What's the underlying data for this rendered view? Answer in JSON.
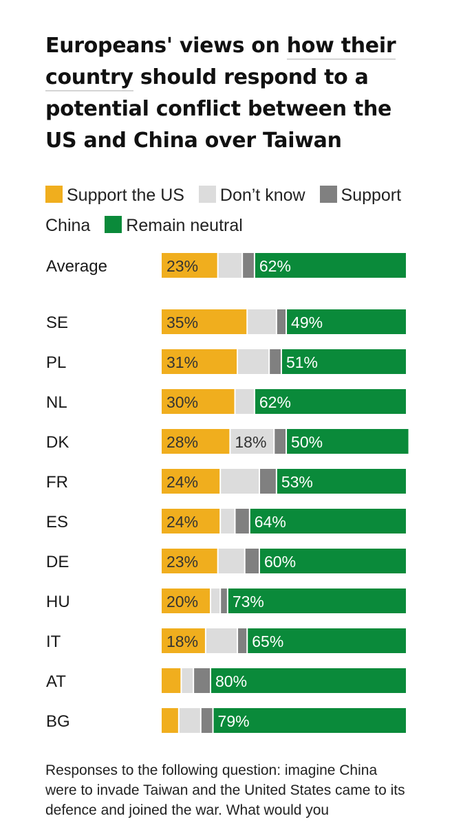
{
  "title_parts": {
    "p1": "Europeans' views on ",
    "p2": "how their",
    "p3": " ",
    "p4": "country",
    "p5": " should respond to a potential conflict between the US and China over Taiwan"
  },
  "legend": {
    "support_us": "Support the US",
    "dont_know": "Don’t know",
    "support_china": "Support China",
    "neutral": "Remain neutral"
  },
  "footnote": "Responses to the following question: imagine China were to invade Taiwan and the United States came to its defence and joined the war. What would you",
  "colors": {
    "support_us": "#f0ae1e",
    "dont_know": "#dcdcdc",
    "support_china": "#808080",
    "neutral": "#0a8a3a",
    "text": "#1a1a1a"
  },
  "chart_data": {
    "type": "bar",
    "orientation": "horizontal",
    "stacked": true,
    "unit": "%",
    "categories": [
      "Average",
      "SE",
      "PL",
      "NL",
      "DK",
      "FR",
      "ES",
      "DE",
      "HU",
      "IT",
      "AT",
      "BG"
    ],
    "series": [
      {
        "name": "Support the US",
        "key": "support_us",
        "values": [
          23,
          35,
          31,
          30,
          28,
          24,
          24,
          23,
          20,
          18,
          8,
          7
        ],
        "labels": [
          "23%",
          "35%",
          "31%",
          "30%",
          "28%",
          "24%",
          "24%",
          "23%",
          "20%",
          "18%",
          "",
          ""
        ]
      },
      {
        "name": "Don’t know",
        "key": "dont_know",
        "values": [
          10,
          12,
          13,
          8,
          18,
          16,
          6,
          11,
          4,
          13,
          5,
          9
        ],
        "labels": [
          "",
          "",
          "",
          "",
          "18%",
          "",
          "",
          "",
          "",
          "",
          "",
          ""
        ]
      },
      {
        "name": "Support China",
        "key": "support_china",
        "values": [
          5,
          4,
          5,
          0,
          5,
          7,
          6,
          6,
          3,
          4,
          7,
          5
        ],
        "labels": [
          "",
          "",
          "",
          "",
          "",
          "",
          "",
          "",
          "",
          "",
          "",
          ""
        ]
      },
      {
        "name": "Remain neutral",
        "key": "neutral",
        "values": [
          62,
          49,
          51,
          62,
          50,
          53,
          64,
          60,
          73,
          65,
          80,
          79
        ],
        "labels": [
          "62%",
          "49%",
          "51%",
          "62%",
          "50%",
          "53%",
          "64%",
          "60%",
          "73%",
          "65%",
          "80%",
          "79%"
        ]
      }
    ],
    "xlim": [
      0,
      100
    ],
    "grid": false
  }
}
